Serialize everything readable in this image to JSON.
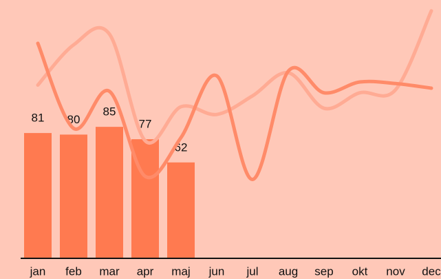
{
  "chart_data": {
    "type": "bar-line",
    "categories": [
      "jan",
      "feb",
      "mar",
      "apr",
      "maj",
      "jun",
      "jul",
      "aug",
      "sep",
      "okt",
      "nov",
      "dec"
    ],
    "series": [
      {
        "type": "bar",
        "color": "#ff7a50",
        "values": [
          81,
          80,
          85,
          77,
          62,
          null,
          null,
          null,
          null,
          null,
          null,
          null
        ]
      },
      {
        "type": "line",
        "color": "#ffab94",
        "values": [
          112,
          138,
          145,
          76,
          98,
          93,
          105,
          120,
          97,
          107,
          109,
          160
        ]
      },
      {
        "type": "line",
        "color": "#ff8b69",
        "values": [
          139,
          84,
          108,
          53,
          78,
          118,
          51,
          121,
          107,
          114,
          113,
          110
        ]
      }
    ],
    "ylim": [
      0,
      167
    ]
  }
}
